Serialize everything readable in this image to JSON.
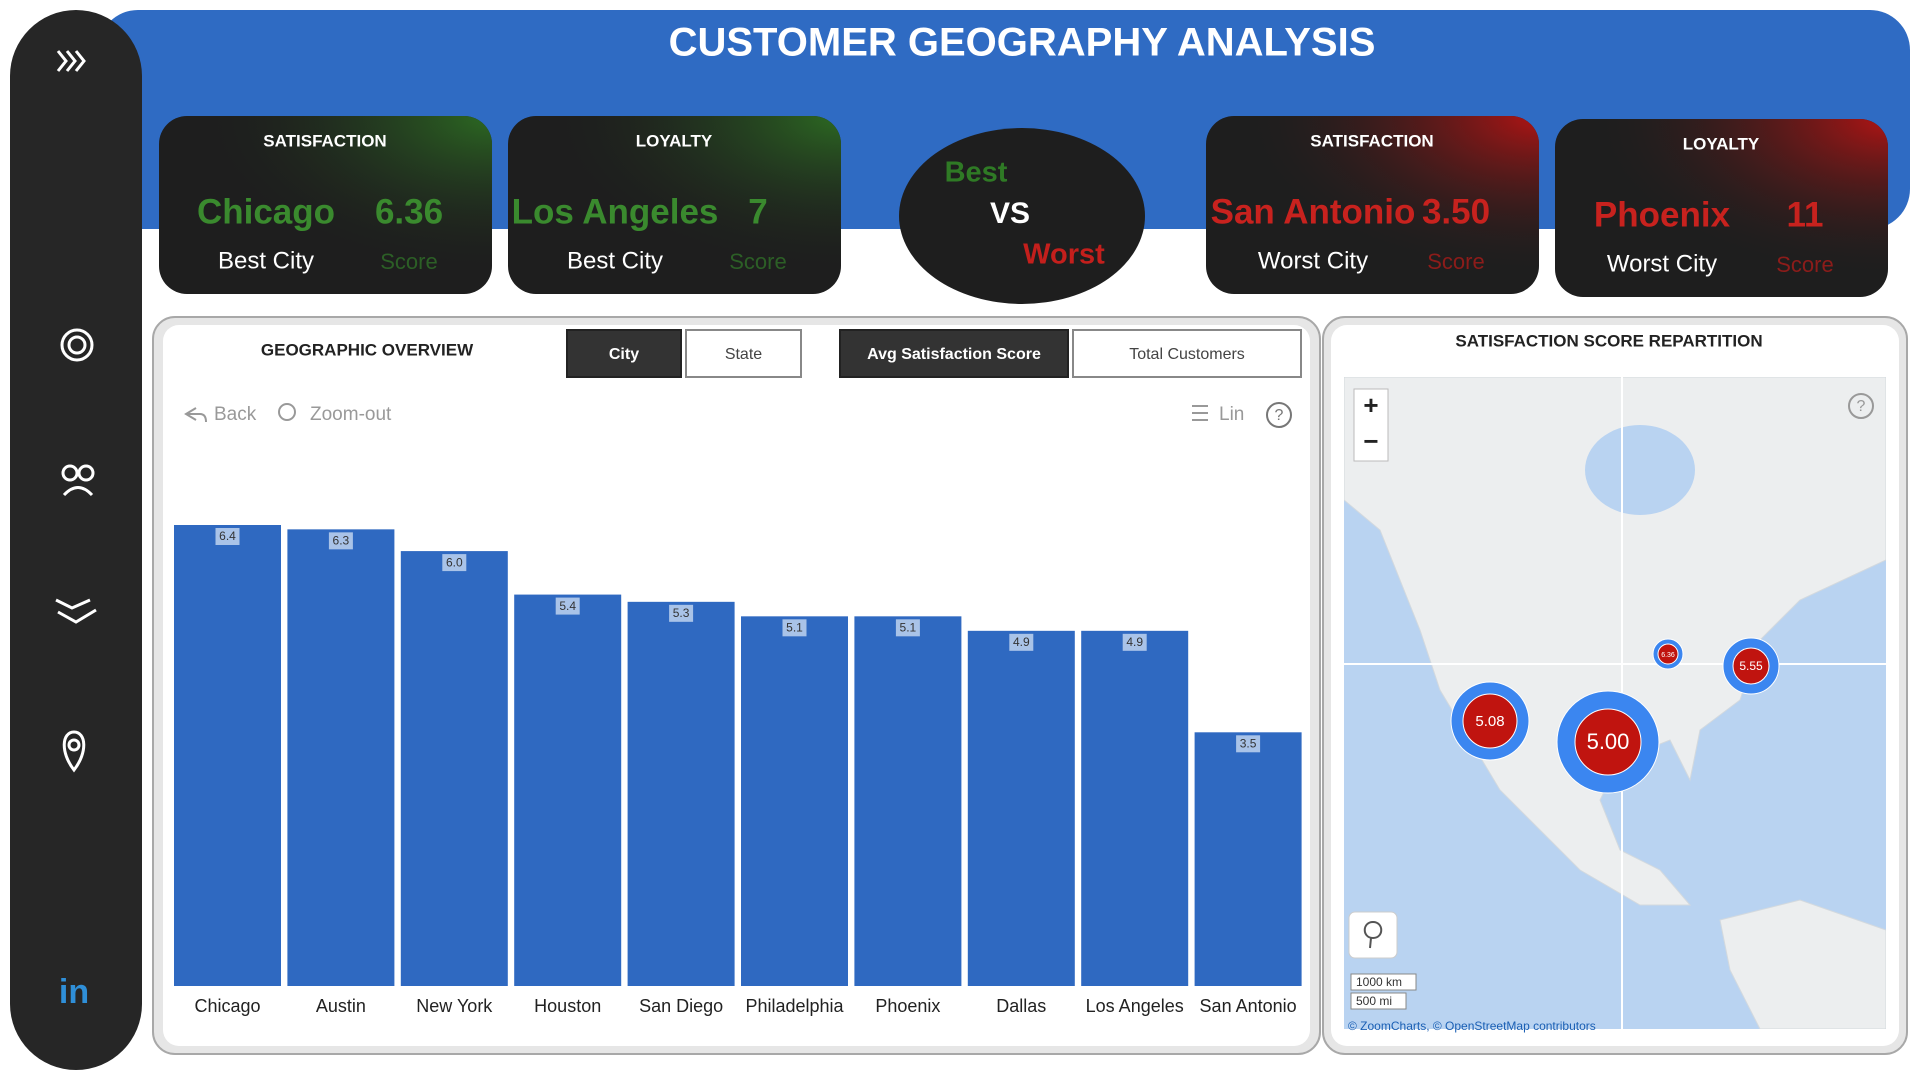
{
  "header": {
    "title": "CUSTOMER GEOGRAPHY ANALYSIS"
  },
  "sidebar": {
    "linkedin": "in"
  },
  "kpis": [
    {
      "metric": "SATISFACTION",
      "city": "Chicago",
      "value": "6.36",
      "caption": "Best City",
      "unit": "Score"
    },
    {
      "metric": "LOYALTY",
      "city": "Los Angeles",
      "value": "7",
      "caption": "Best City",
      "unit": "Score"
    },
    {
      "metric": "SATISFACTION",
      "city": "San Antonio",
      "value": "3.50",
      "caption": "Worst City",
      "unit": "Score"
    },
    {
      "metric": "LOYALTY",
      "city": "Phoenix",
      "value": "11",
      "caption": "Worst City",
      "unit": "Score"
    }
  ],
  "versus": {
    "best": "Best",
    "vs": "VS",
    "worst": "Worst"
  },
  "overview": {
    "title": "GEOGRAPHIC OVERVIEW",
    "level_buttons": [
      "City",
      "State"
    ],
    "measure_buttons": [
      "Avg Satisfaction Score",
      "Total Customers"
    ],
    "toolbar": {
      "back": "Back",
      "zoom_out": "Zoom-out",
      "scale": "Lin",
      "help": "?"
    },
    "chart": {
      "type": "bar",
      "categories": [
        "Chicago",
        "Austin",
        "New York",
        "Houston",
        "San Diego",
        "Philadelphia",
        "Phoenix",
        "Dallas",
        "Los Angeles",
        "San Antonio"
      ],
      "values": [
        6.36,
        6.3,
        6.0,
        5.4,
        5.3,
        5.1,
        5.1,
        4.9,
        4.9,
        3.5
      ],
      "value_labels": [
        "6.4",
        "6.3",
        "6.0",
        "5.4",
        "5.3",
        "5.1",
        "5.1",
        "4.9",
        "4.9",
        "3.5"
      ],
      "color": "#2f69c1"
    }
  },
  "map": {
    "title": "SATISFACTION SCORE  REPARTITION",
    "zoom_in": "+",
    "zoom_out": "−",
    "help": "?",
    "scale_km": "1000 km",
    "scale_mi": "500 mi",
    "attribution": "© ZoomCharts, © OpenStreetMap contributors",
    "bubbles": {
      "values": [
        6.36,
        5.55,
        5.08,
        5.0
      ],
      "value_labels": [
        "6.36",
        "5.55",
        "5.08",
        "5.00"
      ]
    }
  }
}
